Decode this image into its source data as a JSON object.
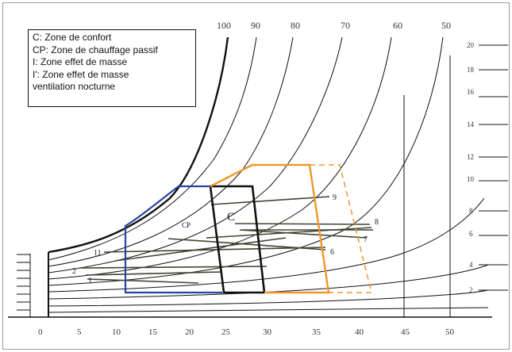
{
  "legend": {
    "items": [
      "C: Zone de confort",
      "CP: Zone de chauffage passif",
      "I: Zone effet de masse",
      "I': Zone effet de masse",
      "ventilation nocturne"
    ]
  },
  "x_axis": {
    "ticks": [
      "0",
      "5",
      "10",
      "15",
      "20",
      "25",
      "30",
      "35",
      "40",
      "45",
      "50"
    ]
  },
  "rh_labels": [
    "100",
    "90",
    "80",
    "70",
    "60",
    "50"
  ],
  "abs_humidity_labels": [
    "20",
    "18",
    "16",
    "14",
    "12",
    "10",
    "8",
    "6",
    "4",
    "2"
  ],
  "zones": {
    "comfort_label": "C",
    "passive_heating_label": "CP",
    "colors": {
      "comfort": "#111111",
      "passive_heating": "#2a43a0",
      "thermal_mass": "#f0952c",
      "effect_lines": "#3e4530"
    }
  },
  "months": [
    "1",
    "2",
    "6",
    "7",
    "8",
    "9",
    "11"
  ]
}
